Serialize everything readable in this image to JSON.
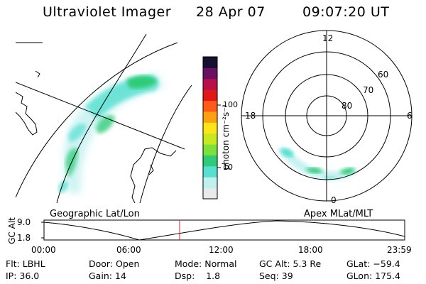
{
  "header": {
    "instrument": "Ultraviolet Imager",
    "date": "28 Apr 07",
    "time": "09:07:20 UT"
  },
  "colorbar": {
    "unit_label": "photon cm⁻²s⁻¹",
    "tick_100": "100",
    "tick_10": "10",
    "colors": [
      "#e9e9e9",
      "#bff0f0",
      "#55e0d0",
      "#2ecc78",
      "#7ee03a",
      "#c6ea1f",
      "#ffe41a",
      "#ffa010",
      "#ff5a1a",
      "#e01818",
      "#b8104a",
      "#6a1060",
      "#141030"
    ]
  },
  "polar": {
    "mlt_12": "12",
    "mlt_18": "18",
    "mlt_6": "6",
    "mlt_0": "0",
    "lat_60": "60",
    "lat_70": "70",
    "lat_80": "80"
  },
  "panels": {
    "left_title": "Geographic Lat/Lon",
    "right_title": "Apex MLat/MLT"
  },
  "altitude_plot": {
    "axis_label": "GC Alt",
    "y_max": "9.0",
    "y_min": "1.8",
    "x_ticks": [
      "00:00",
      "06:00",
      "12:00",
      "18:00",
      "23:59"
    ],
    "current_time_color": "#cc2222"
  },
  "footer": {
    "filter": "Flt: LBHL",
    "door": "Door: Open",
    "mode": "Mode: Normal",
    "gc_alt": "GC Alt: 5.3 Re",
    "glat": "GLat: −59.4",
    "ip": "IP: 36.0",
    "gain": "Gain: 14",
    "dsp": "Dsp:    1.8",
    "seq": "Seq: 39",
    "glon": "GLon: 175.4"
  }
}
